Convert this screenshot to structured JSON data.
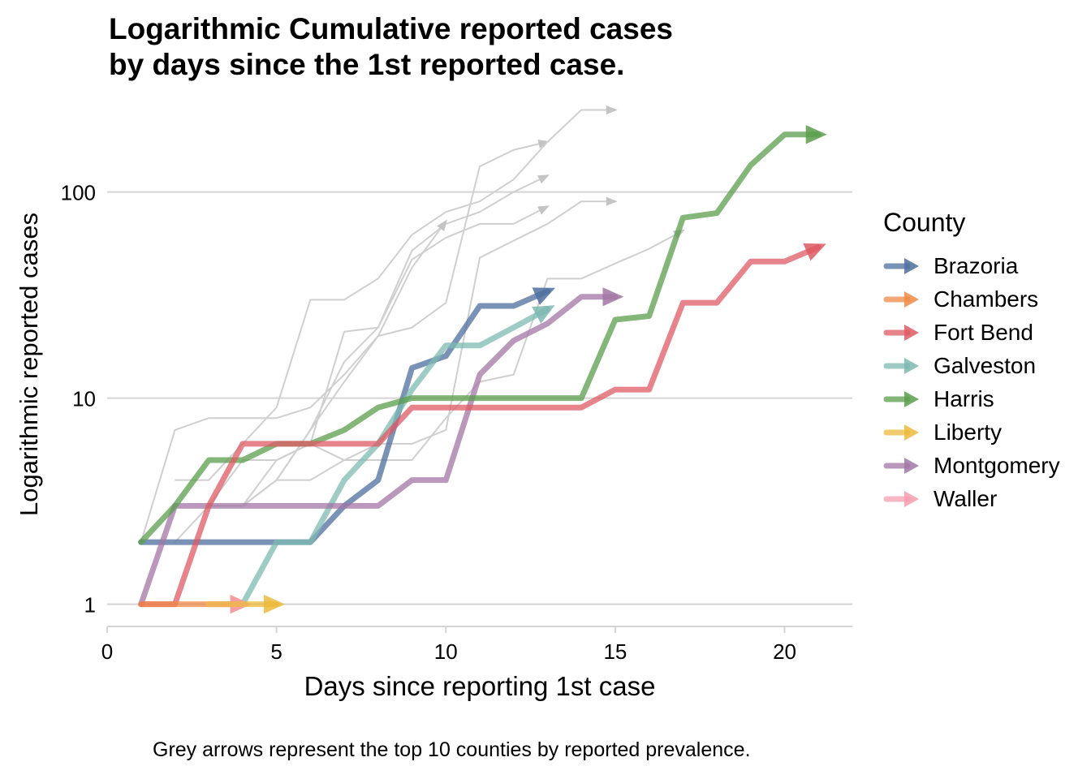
{
  "title_lines": [
    "Logarithmic Cumulative reported cases",
    "by days since the 1st reported case."
  ],
  "caption": "Grey arrows represent the top 10 counties by reported prevalence.",
  "legend": {
    "title": "County"
  },
  "chart_data": {
    "type": "line",
    "title": "Logarithmic Cumulative reported cases by days since the 1st reported case.",
    "xlabel": "Days since reporting 1st case",
    "ylabel": "Logarithmic reported cases",
    "xlim": [
      0,
      22
    ],
    "ylim": [
      0.78,
      240
    ],
    "y_scale": "log10",
    "x_ticks": [
      0,
      5,
      10,
      15,
      20
    ],
    "y_ticks": [
      1,
      10,
      100
    ],
    "y_tick_labels": [
      "1",
      "10",
      "100"
    ],
    "grid": "horizontal major",
    "legend_position": "right",
    "series": [
      {
        "name": "Brazoria",
        "color": "#4E6E9E",
        "x": [
          1,
          2,
          3,
          4,
          5,
          6,
          7,
          8,
          9,
          10,
          11,
          12,
          13
        ],
        "y": [
          2,
          2,
          2,
          2,
          2,
          2,
          3,
          4,
          14,
          16,
          28,
          28,
          33
        ]
      },
      {
        "name": "Chambers",
        "color": "#EF8A47",
        "x": [
          1,
          2,
          3,
          4
        ],
        "y": [
          1,
          1,
          1,
          1
        ]
      },
      {
        "name": "Fort Bend",
        "color": "#DE5A64",
        "x": [
          1,
          2,
          3,
          4,
          5,
          6,
          7,
          8,
          9,
          10,
          11,
          12,
          13,
          14,
          15,
          16,
          17,
          18,
          19,
          20,
          21
        ],
        "y": [
          1,
          1,
          3,
          6,
          6,
          6,
          6,
          6,
          9,
          9,
          9,
          9,
          9,
          9,
          11,
          11,
          29,
          29,
          46,
          46,
          54
        ]
      },
      {
        "name": "Galveston",
        "color": "#7DB9B0",
        "x": [
          4,
          5,
          6,
          7,
          8,
          9,
          10,
          11,
          12,
          13
        ],
        "y": [
          1,
          2,
          2,
          4,
          6,
          11,
          18,
          18,
          22,
          27
        ]
      },
      {
        "name": "Harris",
        "color": "#5A9E4B",
        "x": [
          1,
          2,
          3,
          4,
          5,
          6,
          7,
          8,
          9,
          10,
          11,
          12,
          13,
          14,
          15,
          16,
          17,
          18,
          19,
          20,
          21
        ],
        "y": [
          2,
          3,
          5,
          5,
          6,
          6,
          7,
          9,
          10,
          10,
          10,
          10,
          10,
          10,
          24,
          25,
          75,
          79,
          135,
          190,
          190
        ]
      },
      {
        "name": "Liberty",
        "color": "#ECBA3B",
        "x": [
          3,
          4,
          5
        ],
        "y": [
          1,
          1,
          1
        ]
      },
      {
        "name": "Montgomery",
        "color": "#A176A4",
        "x": [
          1,
          2,
          3,
          4,
          5,
          6,
          7,
          8,
          9,
          10,
          11,
          12,
          13,
          14,
          15
        ],
        "y": [
          1,
          3,
          3,
          3,
          3,
          3,
          3,
          3,
          4,
          4,
          13,
          19,
          23,
          31,
          31
        ]
      },
      {
        "name": "Waller",
        "color": "#F79EAF",
        "x": [
          3,
          4
        ],
        "y": [
          1,
          1
        ]
      }
    ],
    "background_series": [
      {
        "x": [
          1,
          2,
          3,
          4,
          5,
          6,
          7,
          8,
          9,
          10,
          11,
          12,
          13
        ],
        "y": [
          2,
          7,
          8,
          8,
          8,
          9,
          13,
          20,
          22,
          29,
          133,
          160,
          175
        ]
      },
      {
        "x": [
          2,
          3,
          4,
          5,
          6,
          7,
          8,
          9,
          10,
          11,
          12,
          13,
          14,
          15
        ],
        "y": [
          4,
          4,
          6,
          9,
          30,
          30,
          38,
          62,
          80,
          90,
          115,
          175,
          250,
          250
        ]
      },
      {
        "x": [
          3,
          4,
          5,
          6,
          7,
          8,
          9,
          10,
          11,
          12,
          13
        ],
        "y": [
          3,
          5,
          5,
          6,
          21,
          22,
          47,
          60,
          70,
          70,
          85
        ]
      },
      {
        "x": [
          4,
          5,
          6,
          7,
          8,
          9,
          10,
          11,
          12,
          13
        ],
        "y": [
          3,
          4,
          7,
          15,
          22,
          52,
          70,
          80,
          100,
          120
        ]
      },
      {
        "x": [
          2,
          3,
          4,
          5,
          6,
          7,
          8,
          9,
          10
        ],
        "y": [
          2,
          3,
          3,
          4,
          7,
          12,
          20,
          43,
          72
        ]
      },
      {
        "x": [
          4,
          5,
          6,
          7,
          8,
          9,
          10,
          11,
          12,
          13,
          14,
          15
        ],
        "y": [
          3,
          5,
          6,
          5,
          6,
          6,
          7,
          48,
          58,
          70,
          90,
          90
        ]
      },
      {
        "x": [
          5,
          6,
          7,
          8,
          9,
          10,
          11,
          12,
          13,
          14,
          15,
          16,
          17
        ],
        "y": [
          4,
          4,
          5,
          5,
          5,
          8,
          12,
          13,
          38,
          38,
          45,
          53,
          65
        ]
      }
    ]
  }
}
